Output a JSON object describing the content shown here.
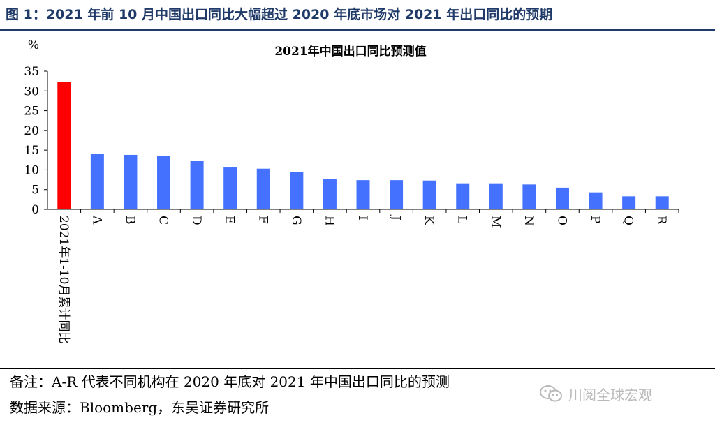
{
  "figure": {
    "title": "图 1：2021 年前 10 月中国出口同比大幅超过 2020 年底市场对 2021 年出口同比的预期",
    "note": "备注：A-R 代表不同机构在 2020 年底对 2021 年中国出口同比的预测",
    "source": "数据来源：Bloomberg，东吴证券研究所",
    "watermark": "川阅全球宏观",
    "watermark_icon": "wechat-icon"
  },
  "colors": {
    "title": "#1f3a68",
    "highlight_bar": "#ff0000",
    "bar": "#4472ff",
    "watermark": "#b9b9b9"
  },
  "chart_data": {
    "type": "bar",
    "title": "2021年中国出口同比预测值",
    "ylabel": "%",
    "xlabel": "",
    "ylim": [
      0,
      35
    ],
    "yticks": [
      0,
      5,
      10,
      15,
      20,
      25,
      30,
      35
    ],
    "grid": false,
    "categories": [
      "2021年1-10月累计同比",
      "A",
      "B",
      "C",
      "D",
      "E",
      "F",
      "G",
      "H",
      "I",
      "J",
      "K",
      "L",
      "M",
      "N",
      "O",
      "P",
      "Q",
      "R"
    ],
    "values": [
      32.3,
      14.0,
      13.8,
      13.5,
      12.2,
      10.6,
      10.3,
      9.4,
      7.6,
      7.4,
      7.4,
      7.3,
      6.6,
      6.6,
      6.3,
      5.5,
      4.3,
      3.3,
      3.3
    ],
    "highlight_index": 0
  }
}
